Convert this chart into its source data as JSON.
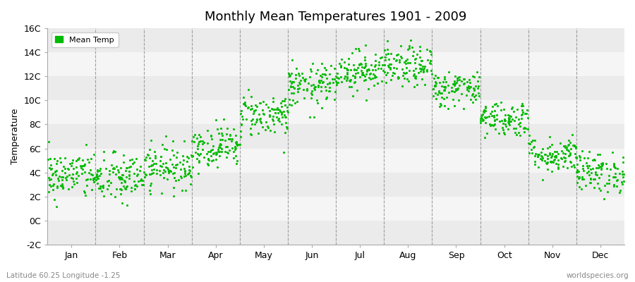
{
  "title": "Monthly Mean Temperatures 1901 - 2009",
  "ylabel": "Temperature",
  "subtitle_left": "Latitude 60.25 Longitude -1.25",
  "subtitle_right": "worldspecies.org",
  "legend_label": "Mean Temp",
  "dot_color": "#00bb00",
  "ylim": [
    -2,
    16
  ],
  "yticks": [
    -2,
    0,
    2,
    4,
    6,
    8,
    10,
    12,
    14,
    16
  ],
  "ytick_labels": [
    "-2C",
    "0C",
    "2C",
    "4C",
    "6C",
    "8C",
    "10C",
    "12C",
    "14C",
    "16C"
  ],
  "months": [
    "Jan",
    "Feb",
    "Mar",
    "Apr",
    "May",
    "Jun",
    "Jul",
    "Aug",
    "Sep",
    "Oct",
    "Nov",
    "Dec"
  ],
  "monthly_means": [
    3.8,
    3.5,
    4.5,
    6.2,
    8.8,
    11.2,
    12.5,
    12.8,
    11.0,
    8.5,
    5.5,
    4.0
  ],
  "monthly_stds": [
    1.0,
    1.05,
    0.9,
    0.85,
    0.9,
    0.9,
    0.85,
    0.85,
    0.75,
    0.75,
    0.75,
    0.85
  ],
  "n_years": 109,
  "random_seed": 42,
  "marker_size": 5,
  "band_colors": [
    "#ebebeb",
    "#f5f5f5"
  ],
  "bg_color": "#f5f5f5"
}
